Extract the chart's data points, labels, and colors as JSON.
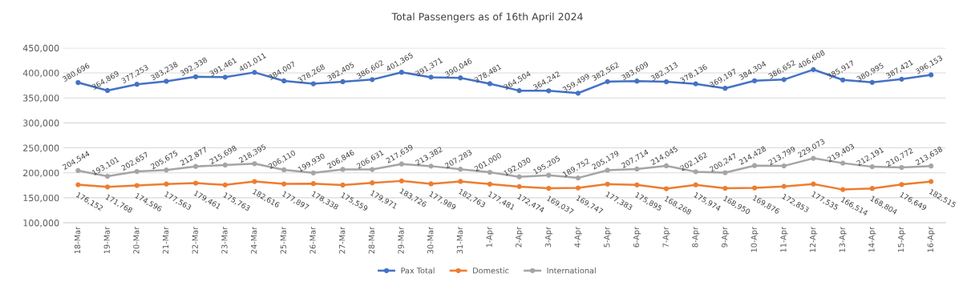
{
  "chart_data": {
    "type": "line",
    "title": "Total Passengers as of 16th April 2024",
    "categories": [
      "18-Mar",
      "19-Mar",
      "20-Mar",
      "21-Mar",
      "22-Mar",
      "23-Mar",
      "24-Mar",
      "25-Mar",
      "26-Mar",
      "27-Mar",
      "28-Mar",
      "29-Mar",
      "30-Mar",
      "31-Mar",
      "1-Apr",
      "2-Apr",
      "3-Apr",
      "4-Apr",
      "5-Apr",
      "6-Apr",
      "7-Apr",
      "8-Apr",
      "9-Apr",
      "10-Apr",
      "11-Apr",
      "12-Apr",
      "13-Apr",
      "14-Apr",
      "15-Apr",
      "16-Apr"
    ],
    "series": [
      {
        "name": "Pax Total",
        "color": "#4472c4",
        "values": [
          380696,
          364869,
          377253,
          383238,
          392338,
          391461,
          401011,
          384007,
          378268,
          382405,
          386602,
          401365,
          391371,
          390046,
          378481,
          364504,
          364242,
          359499,
          382562,
          383609,
          382313,
          378136,
          369197,
          384304,
          386652,
          406608,
          385917,
          380995,
          387421,
          396153
        ],
        "value_labels": [
          "380,696",
          "364,869",
          "377,253",
          "383,238",
          "392,338",
          "391,461",
          "401,011",
          "384,007",
          "378,268",
          "382,405",
          "386,602",
          "401,365",
          "391,371",
          "390,046",
          "378,481",
          "364,504",
          "364,242",
          "359,499",
          "382,562",
          "383,609",
          "382,313",
          "378,136",
          "369,197",
          "384,304",
          "386,652",
          "406,608",
          "385,917",
          "380,995",
          "387,421",
          "396,153"
        ]
      },
      {
        "name": "Domestic",
        "color": "#ed7d31",
        "values": [
          176152,
          171768,
          174596,
          177563,
          179461,
          175763,
          182616,
          177897,
          178338,
          175559,
          179971,
          183726,
          177989,
          182763,
          177481,
          172474,
          169037,
          169747,
          177383,
          175895,
          168268,
          175974,
          168950,
          169876,
          172853,
          177535,
          166514,
          168804,
          176649,
          182515
        ],
        "value_labels": [
          "176,152",
          "171,768",
          "174,596",
          "177,563",
          "179,461",
          "175,763",
          "182,616",
          "177,897",
          "178,338",
          "175,559",
          "179,971",
          "183,726",
          "177,989",
          "182,763",
          "177,481",
          "172,474",
          "169,037",
          "169,747",
          "177,383",
          "175,895",
          "168,268",
          "175,974",
          "168,950",
          "169,876",
          "172,853",
          "177,535",
          "166,514",
          "168,804",
          "176,649",
          "182,515"
        ]
      },
      {
        "name": "International",
        "color": "#a5a5a5",
        "values": [
          204544,
          193101,
          202657,
          205675,
          212877,
          215698,
          218395,
          206110,
          199930,
          206846,
          206631,
          217639,
          213382,
          207283,
          201000,
          192030,
          195205,
          189752,
          205179,
          207714,
          214045,
          202162,
          200247,
          214428,
          213799,
          229073,
          219403,
          212191,
          210772,
          213638
        ],
        "value_labels": [
          "204,544",
          "193,101",
          "202,657",
          "205,675",
          "212,877",
          "215,698",
          "218,395",
          "206,110",
          "199,930",
          "206,846",
          "206,631",
          "217,639",
          "213,382",
          "207,283",
          "201,000",
          "192,030",
          "195,205",
          "189,752",
          "205,179",
          "207,714",
          "214,045",
          "202,162",
          "200,247",
          "214,428",
          "213,799",
          "229,073",
          "219,403",
          "212,191",
          "210,772",
          "213,638"
        ]
      }
    ],
    "ylim": [
      100000,
      450000
    ],
    "yticks": [
      {
        "value": 100000,
        "label": "100,000"
      },
      {
        "value": 150000,
        "label": "150,000"
      },
      {
        "value": 200000,
        "label": "200,000"
      },
      {
        "value": 250000,
        "label": "250,000"
      },
      {
        "value": 300000,
        "label": "300,000"
      },
      {
        "value": 350000,
        "label": "350,000"
      },
      {
        "value": 400000,
        "label": "400,000"
      },
      {
        "value": 450000,
        "label": "450,000"
      }
    ],
    "grid": "y",
    "legend": "bottom",
    "marker": "circle",
    "line_style": "solid"
  }
}
